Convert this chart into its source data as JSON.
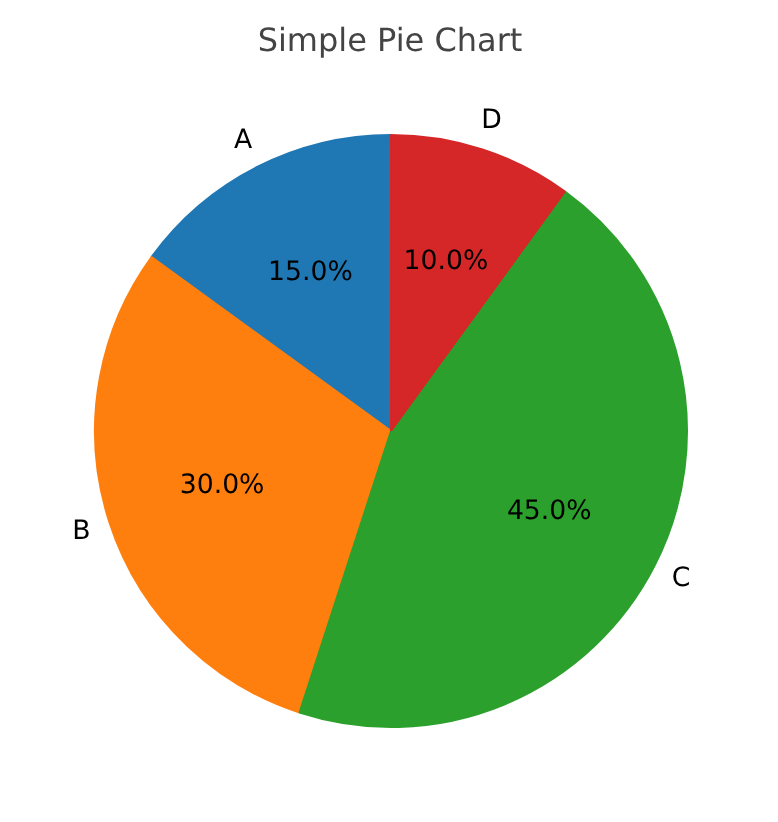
{
  "chart_data": {
    "type": "pie",
    "title": "Simple Pie Chart",
    "categories": [
      "A",
      "B",
      "C",
      "D"
    ],
    "values": [
      15,
      30,
      45,
      10
    ],
    "colors": [
      "#1f77b4",
      "#ff7f0e",
      "#2ca02c",
      "#d62728"
    ],
    "value_labels": [
      "15.0%",
      "30.0%",
      "45.0%",
      "10.0%"
    ]
  }
}
